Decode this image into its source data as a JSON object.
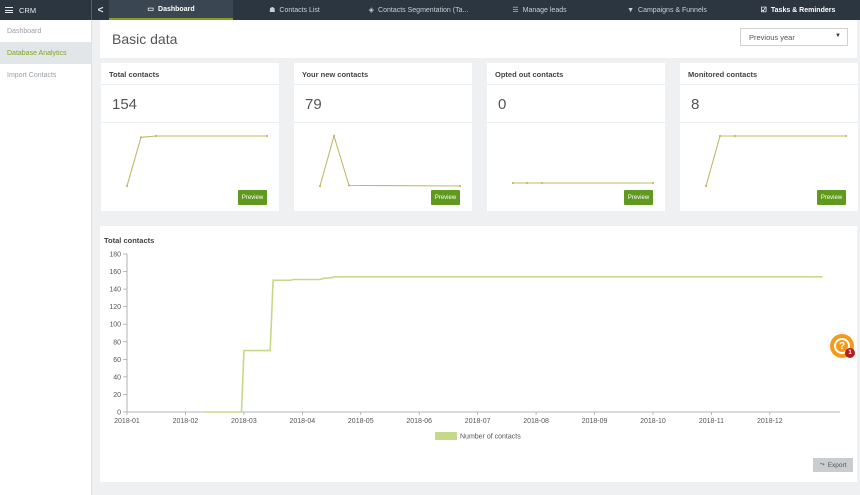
{
  "app": {
    "title": "CRM",
    "menu_icon": "hamburger-icon",
    "collapse_icon": "chevron-left-icon",
    "collapse_glyph": "<"
  },
  "tabs": [
    {
      "label": "Dashboard",
      "icon": "laptop-icon",
      "glyph": "▭",
      "active": true
    },
    {
      "label": "Contacts List",
      "icon": "users-icon",
      "glyph": "☗",
      "active": false
    },
    {
      "label": "Contacts Segmentation (Ta...",
      "icon": "tag-icon",
      "glyph": "◈",
      "active": false
    },
    {
      "label": "Manage leads",
      "icon": "list-icon",
      "glyph": "☰",
      "active": false
    },
    {
      "label": "Campaigns & Funnels",
      "icon": "filter-icon",
      "glyph": "▼",
      "active": false
    },
    {
      "label": "Tasks & Reminders",
      "icon": "checkbox-icon",
      "glyph": "☑",
      "active": false
    }
  ],
  "sidebar": {
    "items": [
      {
        "label": "Dashboard",
        "active": false
      },
      {
        "label": "Database Analytics",
        "active": true
      },
      {
        "label": "Import Contacts",
        "active": false
      }
    ]
  },
  "header": {
    "title": "Basic data",
    "period": "Previous year",
    "period_arrow": "▼"
  },
  "cards": [
    {
      "title": "Total contacts",
      "value": "154",
      "button": "Preview",
      "spark": [
        0,
        150,
        154,
        154
      ]
    },
    {
      "title": "Your new contacts",
      "value": "79",
      "button": "Preview",
      "spark": [
        0,
        79,
        1,
        0
      ]
    },
    {
      "title": "Opted out contacts",
      "value": "0",
      "button": "Preview",
      "spark": [
        0,
        0,
        0,
        0
      ]
    },
    {
      "title": "Monitored contacts",
      "value": "8",
      "button": "Preview",
      "spark": [
        0,
        8,
        8,
        8
      ]
    }
  ],
  "colors": {
    "accent": "#7ea322",
    "button_green": "#5f9a1e",
    "line": "#c6d98a",
    "topbar": "#2c3640"
  },
  "chart_data": {
    "type": "line",
    "title": "Total contacts",
    "xlabel": "",
    "ylabel": "",
    "ylim": [
      0,
      180
    ],
    "yticks": [
      0,
      20,
      40,
      60,
      80,
      100,
      120,
      140,
      160,
      180
    ],
    "categories": [
      "2018-01",
      "2018-02",
      "2018-03",
      "2018-04",
      "2018-05",
      "2018-06",
      "2018-07",
      "2018-08",
      "2018-09",
      "2018-10",
      "2018-11",
      "2018-12"
    ],
    "legend": "bottom",
    "series": [
      {
        "name": "Number of contacts",
        "x": [
          2.35,
          2.96,
          3.0,
          3.45,
          3.5,
          3.8,
          3.85,
          4.3,
          4.35,
          4.5,
          4.55,
          12.9
        ],
        "values": [
          0,
          0,
          70,
          70,
          150,
          150,
          151,
          151,
          152,
          153,
          154,
          154
        ]
      }
    ]
  },
  "export": {
    "label": "Export",
    "icon": "chart-icon",
    "glyph": "⤳"
  },
  "help": {
    "icon": "question-icon",
    "glyph": "?",
    "badge": "1"
  }
}
